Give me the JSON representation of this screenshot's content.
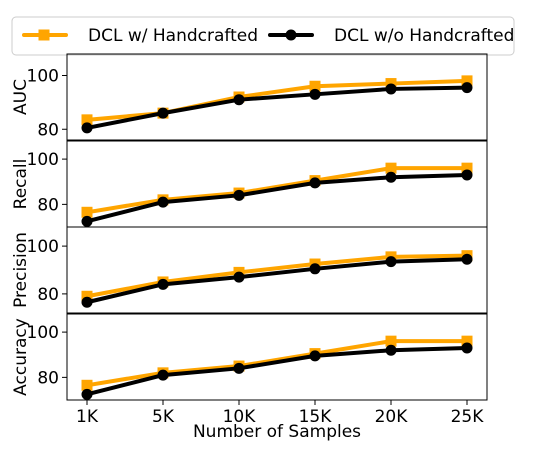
{
  "chart_data": {
    "type": "line",
    "xlabel": "Number of Samples",
    "categories": [
      "1K",
      "5K",
      "10K",
      "15K",
      "20K",
      "25K"
    ],
    "legend_position": "top",
    "grid": false,
    "series_styles": [
      {
        "name": "DCL w/ Handcrafted",
        "color": "#FFA500",
        "marker": "square"
      },
      {
        "name": "DCL w/o Handcrafted",
        "color": "#000000",
        "marker": "circle"
      }
    ],
    "panels": [
      {
        "ylabel": "AUC",
        "ylim": [
          76,
          108
        ],
        "yticks": [
          80,
          100
        ],
        "series": [
          {
            "name": "DCL w/ Handcrafted",
            "values": [
              83.5,
              86,
              92,
              96,
              97,
              98
            ]
          },
          {
            "name": "DCL w/o Handcrafted",
            "values": [
              80.5,
              86,
              91,
              93,
              95,
              95.5
            ]
          }
        ]
      },
      {
        "ylabel": "Recall",
        "ylim": [
          70,
          108
        ],
        "yticks": [
          80,
          100
        ],
        "series": [
          {
            "name": "DCL w/ Handcrafted",
            "values": [
              76.5,
              82,
              85,
              90.5,
              96,
              96
            ]
          },
          {
            "name": "DCL w/o Handcrafted",
            "values": [
              72.5,
              81,
              84,
              89.5,
              92,
              93
            ]
          }
        ]
      },
      {
        "ylabel": "Precision",
        "ylim": [
          72,
          108
        ],
        "yticks": [
          80,
          100
        ],
        "series": [
          {
            "name": "DCL w/ Handcrafted",
            "values": [
              79,
              85,
              89,
              92.5,
              95.5,
              96
            ]
          },
          {
            "name": "DCL w/o Handcrafted",
            "values": [
              76.5,
              84,
              87,
              90.5,
              93.5,
              94.5
            ]
          }
        ]
      },
      {
        "ylabel": "Accuracy",
        "ylim": [
          70,
          108
        ],
        "yticks": [
          80,
          100
        ],
        "series": [
          {
            "name": "DCL w/ Handcrafted",
            "values": [
              76.5,
              82,
              85,
              90.5,
              96,
              96
            ]
          },
          {
            "name": "DCL w/o Handcrafted",
            "values": [
              72.5,
              81,
              84,
              89.5,
              92,
              93
            ]
          }
        ]
      }
    ]
  }
}
